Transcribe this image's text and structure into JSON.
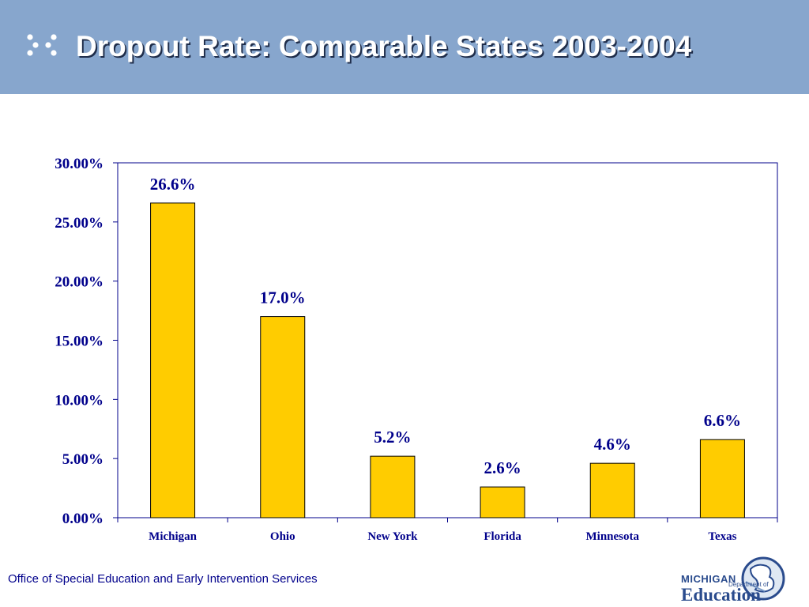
{
  "header": {
    "title": "Dropout Rate: Comparable States 2003-2004",
    "background_color": "#87a6cd"
  },
  "chart_data": {
    "type": "bar",
    "categories": [
      "Michigan",
      "Ohio",
      "New York",
      "Florida",
      "Minnesota",
      "Texas"
    ],
    "values": [
      26.6,
      17.0,
      5.2,
      2.6,
      4.6,
      6.6
    ],
    "data_labels": [
      "26.6%",
      "17.0%",
      "5.2%",
      "2.6%",
      "4.6%",
      "6.6%"
    ],
    "y_ticks": [
      "0.00%",
      "5.00%",
      "10.00%",
      "15.00%",
      "20.00%",
      "25.00%",
      "30.00%"
    ],
    "ylim": [
      0,
      30
    ],
    "title": "",
    "xlabel": "",
    "ylabel": "",
    "grid": false,
    "legend": "none",
    "bar_color": "#ffcc00",
    "text_color": "#00008b"
  },
  "footer": {
    "text": "Office of Special Education and Early Intervention Services"
  },
  "logo": {
    "line1": "MICHIGAN",
    "line2": "Department of",
    "line3": "Education"
  }
}
